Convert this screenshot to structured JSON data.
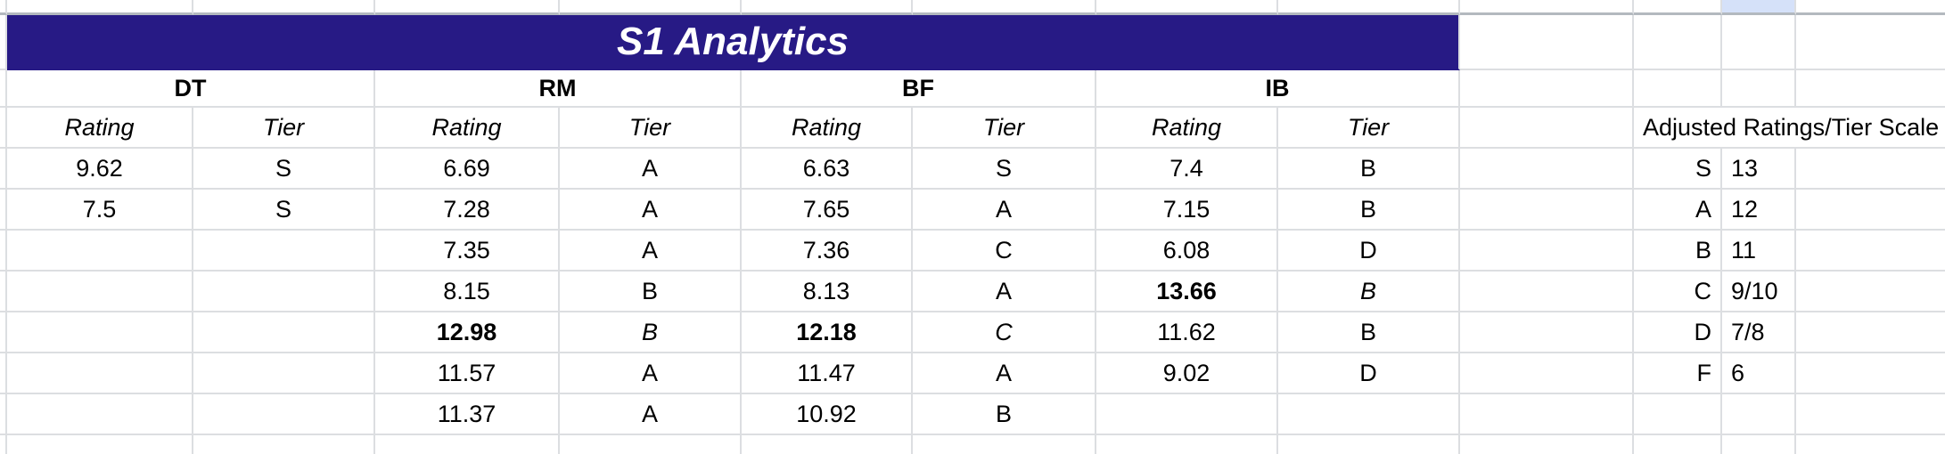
{
  "title": "S1 Analytics",
  "groups": [
    "DT",
    "RM",
    "BF",
    "IB"
  ],
  "labels": {
    "rating": "Rating",
    "tier": "Tier"
  },
  "rows": [
    {
      "dt_r": "9.62",
      "dt_t": "S",
      "rm_r": "6.69",
      "rm_t": "A",
      "bf_r": "6.63",
      "bf_t": "S",
      "ib_r": "7.4",
      "ib_t": "B"
    },
    {
      "dt_r": "7.5",
      "dt_t": "S",
      "rm_r": "7.28",
      "rm_t": "A",
      "bf_r": "7.65",
      "bf_t": "A",
      "ib_r": "7.15",
      "ib_t": "B"
    },
    {
      "dt_r": "",
      "dt_t": "",
      "rm_r": "7.35",
      "rm_t": "A",
      "bf_r": "7.36",
      "bf_t": "C",
      "ib_r": "6.08",
      "ib_t": "D"
    },
    {
      "dt_r": "",
      "dt_t": "",
      "rm_r": "8.15",
      "rm_t": "B",
      "bf_r": "8.13",
      "bf_t": "A",
      "ib_r": "13.66",
      "ib_t": "B"
    },
    {
      "dt_r": "",
      "dt_t": "",
      "rm_r": "12.98",
      "rm_t": "B",
      "bf_r": "12.18",
      "bf_t": "C",
      "ib_r": "11.62",
      "ib_t": "B"
    },
    {
      "dt_r": "",
      "dt_t": "",
      "rm_r": "11.57",
      "rm_t": "A",
      "bf_r": "11.47",
      "bf_t": "A",
      "ib_r": "9.02",
      "ib_t": "D"
    },
    {
      "dt_r": "",
      "dt_t": "",
      "rm_r": "11.37",
      "rm_t": "A",
      "bf_r": "10.92",
      "bf_t": "B",
      "ib_r": "",
      "ib_t": ""
    }
  ],
  "scale": {
    "header": "Adjusted Ratings/Tier Scale",
    "entries": [
      {
        "tier": "S",
        "value": "13"
      },
      {
        "tier": "A",
        "value": "12"
      },
      {
        "tier": "B",
        "value": "11"
      },
      {
        "tier": "C",
        "value": "9/10"
      },
      {
        "tier": "D",
        "value": "7/8"
      },
      {
        "tier": "F",
        "value": "6"
      }
    ]
  },
  "colors": {
    "title_bg": "#271a85",
    "highlight_cell": "#d5e1f9"
  }
}
